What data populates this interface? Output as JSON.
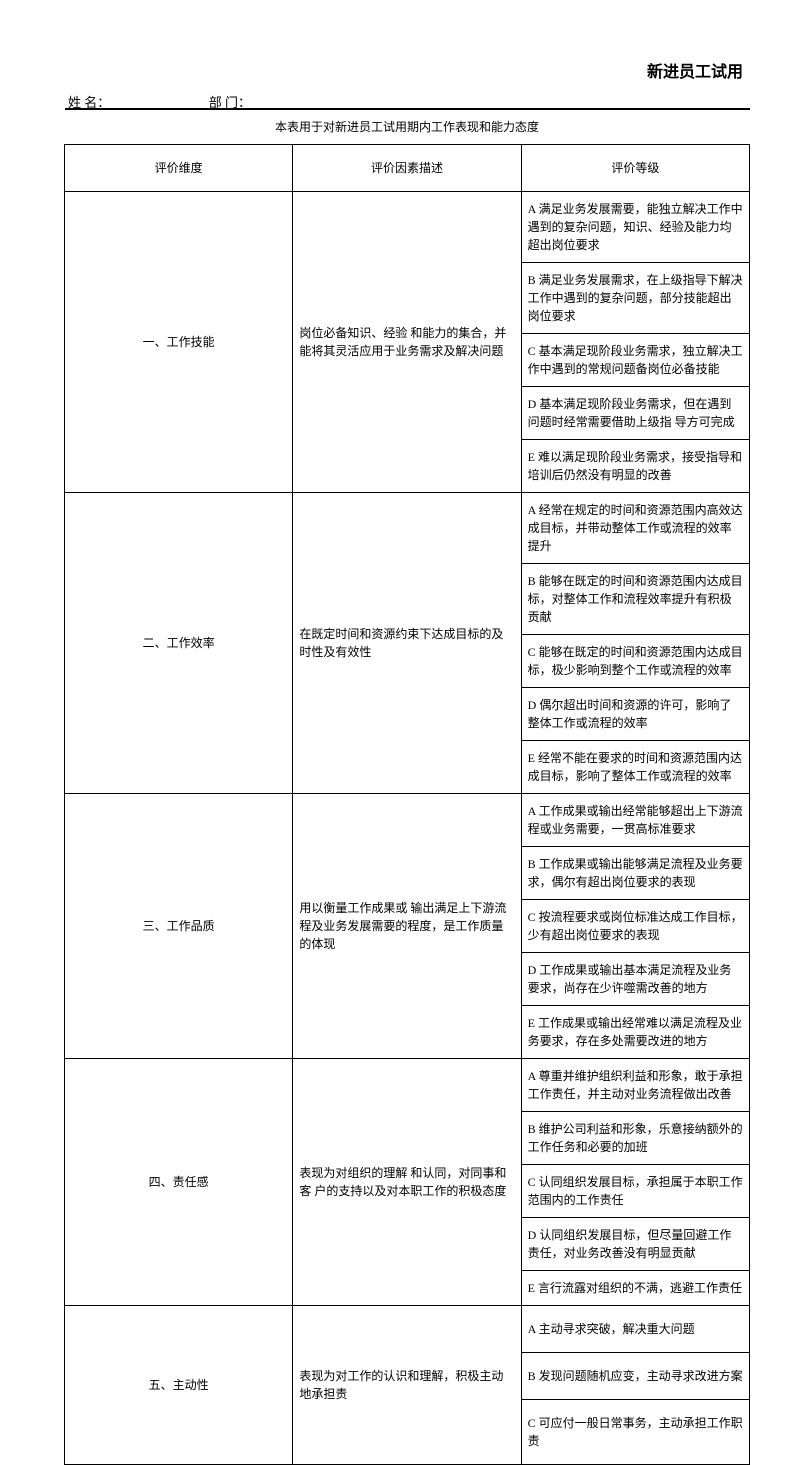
{
  "title": "新进员工试用",
  "header": {
    "name_label": "姓  名：",
    "dept_label": "部  门："
  },
  "intro": "本表用于对新进员工试用期内工作表现和能力态度",
  "columns": {
    "dim": "评价维度",
    "desc": "评价因素描述",
    "grade": "评价等级"
  },
  "rows": [
    {
      "dim": "一、工作技能",
      "desc": "岗位必备知识、经验 和能力的集合，并能将其灵活应用于业务需求及解决问题",
      "grades": [
        "A 满足业务发展需要，能独立解决工作中遇到的复杂问题，知识、经验及能力均超出岗位要求",
        "B 满足业务发展需求，在上级指导下解决工作中遇到的复杂问题，部分技能超出岗位要求",
        "C 基本满足现阶段业务需求，独立解决工作中遇到的常规问题备岗位必备技能",
        "D 基本满足现阶段业务需求，但在遇到问题时经常需要借助上级指    导方可完成",
        "E 难以满足现阶段业务需求，接受指导和培训后仍然没有明显的改善"
      ]
    },
    {
      "dim": "二、工作效率",
      "desc": "在既定时间和资源约束下达成目标的及时性及有效性",
      "grades": [
        "A 经常在规定的时间和资源范围内高效达成目标，并带动整体工作或流程的效率提升",
        "B 能够在既定的时间和资源范围内达成目标，对整体工作和流程效率提升有积极贡献",
        "C 能够在既定的时间和资源范围内达成目标，极少影响到整个工作或流程的效率",
        " D 偶尔超出时间和资源的许可，影响了整体工作或流程的效率",
        "E 经常不能在要求的时间和资源范围内达成目标，影响了整体工作或流程的效率"
      ]
    },
    {
      "dim": "三、工作品质",
      "desc": "用以衡量工作成果或 输出满足上下游流程及业务发展需要的程度，是工作质量的体现",
      "grades": [
        "A 工作成果或输出经常能够超出上下游流程或业务需要，一贯高标准要求",
        "B 工作成果或输出能够满足流程及业务要求，偶尔有超出岗位要求的表现",
        "C 按流程要求或岗位标准达成工作目标，少有超出岗位要求的表现",
        "D 工作成果或输出基本满足流程及业务要求，尚存在少许噬需改善的地方",
        "E 工作成果或输出经常难以满足流程及业务要求，存在多处需要改进的地方"
      ]
    },
    {
      "dim": "四、责任感",
      "desc": "表现为对组织的理解 和认同，对同事和客  户的支持以及对本职工作的积极态度",
      "grades": [
        "A 尊重并维护组织利益和形象，敢于承担工作责任，并主动对业务流程做出改善",
        "B 维护公司利益和形象，乐意接纳额外的工作任务和必要的加班",
        "C 认同组织发展目标，承担属于本职工作范围内的工作责任",
        "D 认同组织发展目标，但尽量回避工作责任，对业务改善没有明显贡献",
        "E 言行流露对组织的不满，逃避工作责任"
      ]
    },
    {
      "dim": "五、主动性",
      "desc": "表现为对工作的认识和理解，积极主动地承担责",
      "grades": [
        "A 主动寻求突破，解决重大问题",
        "B 发现问题随机应变，主动寻求改进方案",
        "C 可应付一般日常事务，主动承担工作职责"
      ]
    }
  ]
}
